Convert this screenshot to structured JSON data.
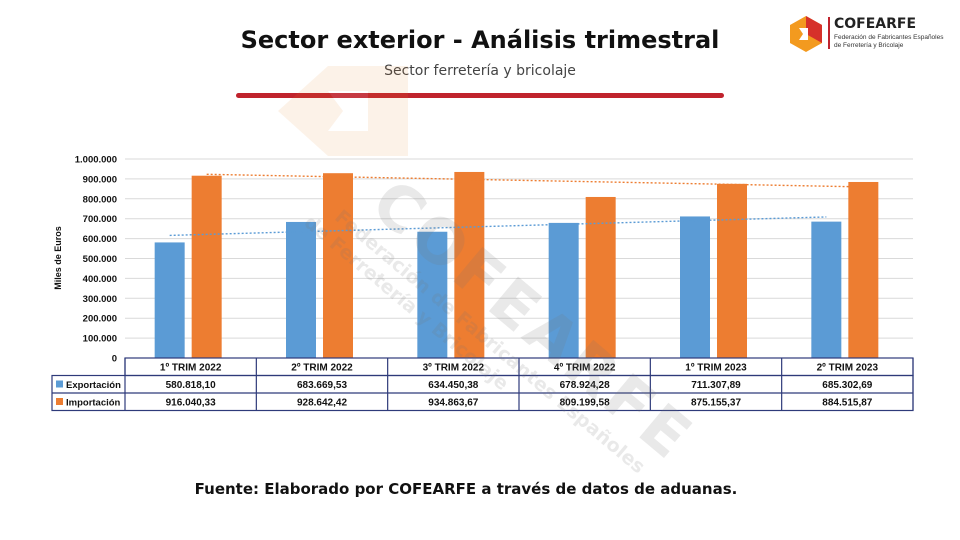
{
  "header": {
    "title": "Sector exterior - Análisis trimestral",
    "subtitle": "Sector ferretería y bricolaje"
  },
  "logo": {
    "name": "COFEARFE",
    "sub_line1": "Federación de Fabricantes Españoles",
    "sub_line2": "de Ferretería y Bricolaje",
    "icon": "cofearfe-logo-icon",
    "colors": {
      "orange": "#f39a1f",
      "red": "#d6312a"
    }
  },
  "watermark": {
    "main": "COFEARFE",
    "line1": "Federación de Fabricantes Españoles",
    "line2": "de Ferretería y Bricolaje"
  },
  "chart_data": {
    "type": "bar",
    "title": "",
    "ylabel": "Miles de Euros",
    "ylim": [
      0,
      1000000
    ],
    "ytick_labels": [
      "0",
      "100.000",
      "200.000",
      "300.000",
      "400.000",
      "500.000",
      "600.000",
      "700.000",
      "800.000",
      "900.000",
      "1.000.000"
    ],
    "categories": [
      "1º TRIM 2022",
      "2º TRIM 2022",
      "3º TRIM 2022",
      "4º TRIM 2022",
      "1º TRIM 2023",
      "2º TRIM 2023"
    ],
    "grid": true,
    "trendlines": true,
    "legend_placement": "data-table",
    "series": [
      {
        "name": "Exportación",
        "color": "#5b9bd5",
        "values": [
          580818.1,
          683669.53,
          634450.38,
          678924.28,
          711307.89,
          685302.69
        ],
        "labels": [
          "580.818,10",
          "683.669,53",
          "634.450,38",
          "678.924,28",
          "711.307,89",
          "685.302,69"
        ]
      },
      {
        "name": "Importación",
        "color": "#ed7d31",
        "values": [
          916040.33,
          928642.42,
          934863.67,
          809199.58,
          875155.37,
          884515.87
        ],
        "labels": [
          "916.040,33",
          "928.642,42",
          "934.863,67",
          "809.199,58",
          "875.155,37",
          "884.515,87"
        ]
      }
    ]
  },
  "footer": {
    "source": "Fuente: Elaborado por COFEARFE a través de datos de aduanas."
  }
}
